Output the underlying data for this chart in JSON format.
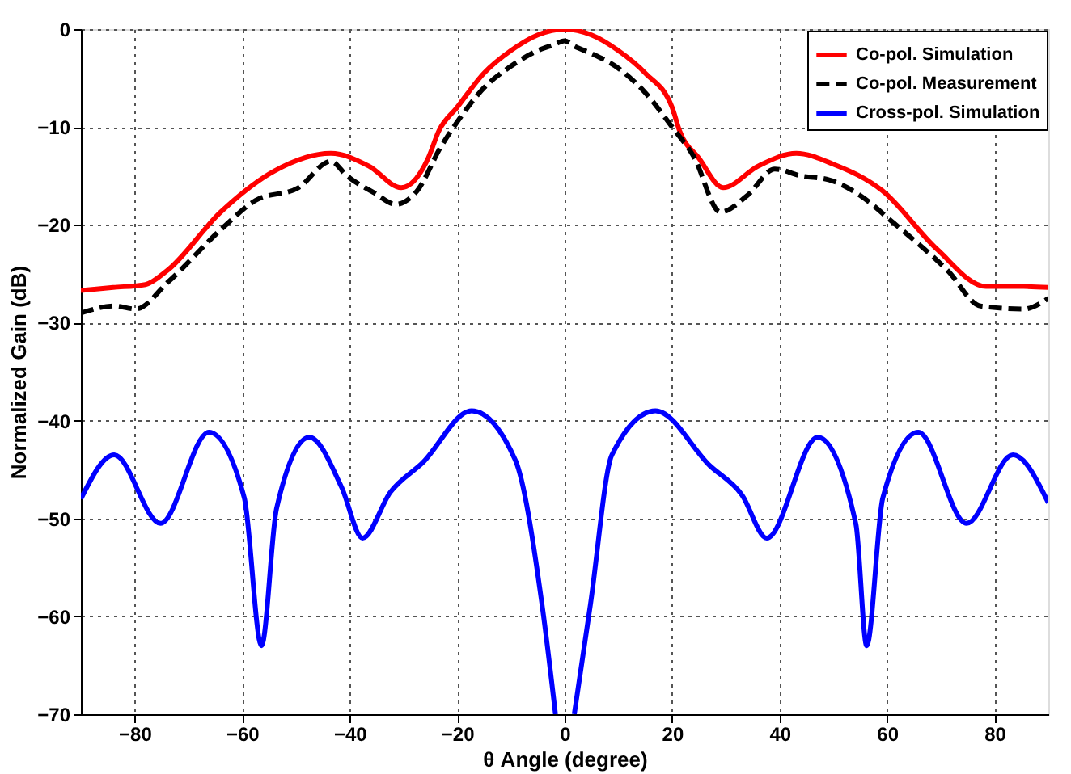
{
  "chart_data": {
    "type": "line",
    "xlabel": "θ Angle (degree)",
    "ylabel": "Normalized Gain (dB)",
    "xlim": [
      -90,
      90
    ],
    "ylim": [
      -70,
      0
    ],
    "xticks": [
      -80,
      -60,
      -40,
      -20,
      0,
      20,
      40,
      60,
      80
    ],
    "yticks": [
      -70,
      -60,
      -50,
      -40,
      -30,
      -20,
      -10,
      0
    ],
    "grid": true,
    "legend": "top right",
    "series": [
      {
        "name": "Co-pol. Simulation",
        "color": "#ff0000",
        "line_style": "solid",
        "x": [
          -90,
          -84,
          -78,
          -74,
          -64,
          -54,
          -43.5,
          -36.4,
          -30.4,
          -25.4,
          -23.4,
          -20,
          -15,
          -10,
          -5,
          0,
          5,
          10,
          15,
          20,
          21.4,
          25,
          29.5,
          36,
          43.1,
          50,
          59.1,
          69.3,
          78.4,
          85.4,
          90
        ],
        "values": [
          -26.7,
          -26.4,
          -26.1,
          -24.7,
          -18.7,
          -14.5,
          -12.7,
          -14,
          -16.2,
          -13.2,
          -10.4,
          -8,
          -4.5,
          -2.2,
          -0.6,
          0,
          -0.6,
          -2.2,
          -4.5,
          -8,
          -10.4,
          -13.2,
          -16.2,
          -14,
          -12.7,
          -13.8,
          -16.5,
          -22.5,
          -26.3,
          -26.3,
          -26.4
        ]
      },
      {
        "name": "Co-pol. Measurement",
        "color": "#000000",
        "line_style": "dashed",
        "x": [
          -90,
          -83.8,
          -79.8,
          -73.7,
          -63.6,
          -57.5,
          -49.5,
          -43.5,
          -40.5,
          -35.5,
          -31.4,
          -27.4,
          -23,
          -20,
          -15,
          -10,
          -5,
          -2,
          0,
          2,
          5,
          10,
          15,
          20,
          24,
          29,
          34,
          39.1,
          44,
          49.2,
          55,
          61.2,
          71.3,
          77.4,
          85.4,
          90
        ],
        "values": [
          -29,
          -28.3,
          -28.6,
          -25.8,
          -20.3,
          -17.5,
          -16.2,
          -13.5,
          -15,
          -16.7,
          -17.9,
          -16.5,
          -12,
          -9.5,
          -6,
          -3.8,
          -2.2,
          -1.6,
          -1.2,
          -1.8,
          -2.5,
          -4,
          -6.5,
          -10,
          -13,
          -18.7,
          -17,
          -14.3,
          -15,
          -15.4,
          -17,
          -19.8,
          -24.7,
          -28.3,
          -28.6,
          -27.5
        ]
      },
      {
        "name": "Cross-pol. Simulation",
        "color": "#0000ff",
        "line_style": "solid",
        "x": [
          -90,
          -83.8,
          -75.2,
          -66.2,
          -59.6,
          -56.4,
          -53.6,
          -47.5,
          -41.5,
          -37.6,
          -32.4,
          -26.4,
          -17.3,
          -9.2,
          -4.2,
          -1.7,
          0,
          1.8,
          4.8,
          8.8,
          16.9,
          27,
          33,
          37.6,
          47.1,
          54.2,
          56.2,
          59.2,
          65.8,
          74.8,
          83.4,
          90
        ],
        "values": [
          -48,
          -43.5,
          -50.5,
          -41.2,
          -47.9,
          -63,
          -49,
          -41.7,
          -46.8,
          -52,
          -47.3,
          -44.3,
          -39,
          -44,
          -58.8,
          -70,
          null,
          -70,
          -58.8,
          -43.5,
          -39,
          -44.6,
          -47.6,
          -52,
          -41.7,
          -50.6,
          -63,
          -47.9,
          -41.2,
          -50.5,
          -43.5,
          -48.4
        ]
      }
    ]
  }
}
